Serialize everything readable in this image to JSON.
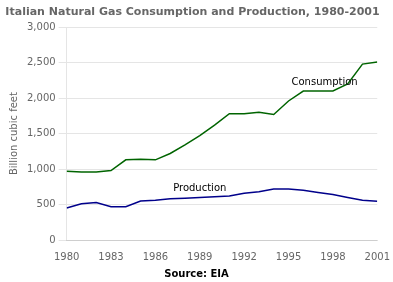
{
  "chart_data": {
    "type": "line",
    "title": "Italian Natural Gas Consumption and Production, 1980-2001",
    "y_label": "Billion cubic feet",
    "x": [
      1980,
      1981,
      1982,
      1983,
      1984,
      1985,
      1986,
      1987,
      1988,
      1989,
      1990,
      1991,
      1992,
      1993,
      1994,
      1995,
      1996,
      1997,
      1998,
      1999,
      2000,
      2001
    ],
    "series": [
      {
        "name": "Consumption",
        "color": "#006400",
        "values": [
          970,
          960,
          960,
          980,
          1130,
          1140,
          1130,
          1220,
          1340,
          1470,
          1620,
          1780,
          1780,
          1800,
          1770,
          1960,
          2100,
          2100,
          2100,
          2200,
          2480,
          2510
        ]
      },
      {
        "name": "Production",
        "color": "#00008B",
        "values": [
          450,
          510,
          530,
          470,
          470,
          550,
          560,
          580,
          590,
          600,
          610,
          620,
          660,
          680,
          720,
          720,
          700,
          670,
          640,
          600,
          560,
          545
        ]
      }
    ],
    "xlim": [
      1980,
      2001
    ],
    "xticks": [
      1980,
      1983,
      1986,
      1989,
      1992,
      1995,
      1998,
      2001
    ],
    "ylim": [
      0,
      3000
    ],
    "yticks": [
      0,
      500,
      {
        "value": 1000,
        "label": "1,000"
      },
      {
        "value": 1500,
        "label": "1,500"
      },
      {
        "value": 2000,
        "label": "2,000"
      },
      {
        "value": 2500,
        "label": "2,500"
      },
      {
        "value": 3000,
        "label": "3,000"
      }
    ],
    "grid": true,
    "annotations": [
      {
        "text": "Consumption",
        "x": 1995.2,
        "y": 2150
      },
      {
        "text": "Production",
        "x": 1987.2,
        "y": 650
      },
      {
        "text": "Source: EIA"
      }
    ]
  }
}
